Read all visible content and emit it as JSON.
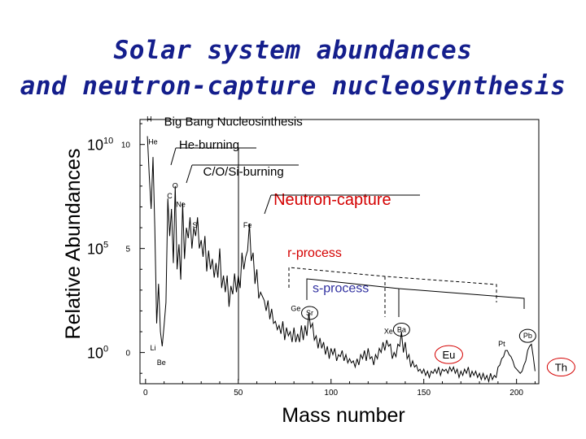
{
  "title_line1": "Solar system abundances",
  "title_line2": "and neutron-capture nucleosynthesis",
  "chart_data": {
    "type": "line",
    "xlabel": "Mass number",
    "ylabel": "Relative Abundances",
    "xlim": [
      -3,
      212
    ],
    "ylim": [
      -1.5,
      11.2
    ],
    "x_ticks": [
      0,
      50,
      100,
      150,
      200
    ],
    "y_ticks_inner": [
      0,
      5,
      10
    ],
    "y_ticks_outer": [
      {
        "value": 10,
        "base": "10",
        "exp": "10"
      },
      {
        "value": 5,
        "base": "10",
        "exp": "5"
      },
      {
        "value": 0,
        "base": "10",
        "exp": "0"
      }
    ],
    "series": [
      {
        "points": [
          [
            1,
            10.4
          ],
          [
            2,
            8.5
          ],
          [
            3,
            6.9
          ],
          [
            4,
            9.4
          ],
          [
            5,
            6.0
          ],
          [
            6,
            1.4
          ],
          [
            7,
            3.3
          ],
          [
            8,
            1.0
          ],
          [
            9,
            0.3
          ],
          [
            10,
            1.3
          ],
          [
            11,
            2.4
          ],
          [
            12,
            7.4
          ],
          [
            13,
            5.6
          ],
          [
            14,
            6.9
          ],
          [
            15,
            4.3
          ],
          [
            16,
            8.0
          ],
          [
            17,
            4.0
          ],
          [
            18,
            5.2
          ],
          [
            19,
            3.5
          ],
          [
            20,
            7.2
          ],
          [
            21,
            4.5
          ],
          [
            22,
            6.0
          ],
          [
            23,
            5.5
          ],
          [
            24,
            6.5
          ],
          [
            25,
            5.0
          ],
          [
            26,
            6.0
          ],
          [
            27,
            5.6
          ],
          [
            28,
            6.5
          ],
          [
            29,
            5.0
          ],
          [
            30,
            5.4
          ],
          [
            31,
            4.6
          ],
          [
            32,
            5.6
          ],
          [
            33,
            3.9
          ],
          [
            34,
            4.9
          ],
          [
            35,
            4.0
          ],
          [
            36,
            4.5
          ],
          [
            37,
            3.6
          ],
          [
            38,
            4.3
          ],
          [
            39,
            3.6
          ],
          [
            40,
            5.0
          ],
          [
            41,
            3.1
          ],
          [
            42,
            3.7
          ],
          [
            43,
            2.9
          ],
          [
            44,
            3.7
          ],
          [
            45,
            2.2
          ],
          [
            46,
            3.2
          ],
          [
            47,
            2.8
          ],
          [
            48,
            3.8
          ],
          [
            49,
            2.9
          ],
          [
            50,
            3.7
          ],
          [
            51,
            3.1
          ],
          [
            52,
            4.8
          ],
          [
            53,
            4.0
          ],
          [
            54,
            4.6
          ],
          [
            55,
            4.9
          ],
          [
            56,
            6.2
          ],
          [
            57,
            4.4
          ],
          [
            58,
            4.8
          ],
          [
            59,
            3.3
          ],
          [
            60,
            4.0
          ],
          [
            61,
            2.6
          ],
          [
            62,
            2.9
          ],
          [
            63,
            2.7
          ],
          [
            64,
            2.5
          ],
          [
            65,
            2.0
          ],
          [
            66,
            2.5
          ],
          [
            67,
            1.6
          ],
          [
            68,
            2.1
          ],
          [
            69,
            1.4
          ],
          [
            70,
            1.5
          ],
          [
            71,
            1.1
          ],
          [
            72,
            1.3
          ],
          [
            73,
            0.9
          ],
          [
            74,
            1.5
          ],
          [
            75,
            0.6
          ],
          [
            76,
            1.2
          ],
          [
            77,
            0.8
          ],
          [
            78,
            1.0
          ],
          [
            79,
            0.5
          ],
          [
            80,
            1.2
          ],
          [
            81,
            0.5
          ],
          [
            82,
            0.9
          ],
          [
            83,
            0.5
          ],
          [
            84,
            1.3
          ],
          [
            85,
            0.6
          ],
          [
            86,
            1.3
          ],
          [
            87,
            0.8
          ],
          [
            88,
            1.9
          ],
          [
            89,
            1.2
          ],
          [
            90,
            1.4
          ],
          [
            91,
            0.6
          ],
          [
            92,
            0.8
          ],
          [
            93,
            0.2
          ],
          [
            94,
            0.7
          ],
          [
            95,
            0.2
          ],
          [
            96,
            0.5
          ],
          [
            97,
            -0.1
          ],
          [
            98,
            0.3
          ],
          [
            99,
            -0.3
          ],
          [
            100,
            0.2
          ],
          [
            101,
            -0.1
          ],
          [
            102,
            0.2
          ],
          [
            103,
            -0.4
          ],
          [
            104,
            -0.1
          ],
          [
            105,
            -0.2
          ],
          [
            106,
            0.1
          ],
          [
            107,
            -0.4
          ],
          [
            108,
            -0.1
          ],
          [
            109,
            -0.5
          ],
          [
            110,
            -0.3
          ],
          [
            111,
            -0.5
          ],
          [
            112,
            -0.4
          ],
          [
            113,
            -0.7
          ],
          [
            114,
            -0.3
          ],
          [
            115,
            -0.6
          ],
          [
            116,
            -0.1
          ],
          [
            117,
            -0.3
          ],
          [
            118,
            0.1
          ],
          [
            119,
            -0.4
          ],
          [
            120,
            0.2
          ],
          [
            121,
            -0.3
          ],
          [
            122,
            -0.2
          ],
          [
            123,
            -0.6
          ],
          [
            124,
            -0.1
          ],
          [
            125,
            -0.3
          ],
          [
            126,
            0.2
          ],
          [
            127,
            0.0
          ],
          [
            128,
            0.5
          ],
          [
            129,
            0.1
          ],
          [
            130,
            0.6
          ],
          [
            131,
            0.3
          ],
          [
            132,
            0.4
          ],
          [
            133,
            -0.3
          ],
          [
            134,
            0.0
          ],
          [
            135,
            -0.2
          ],
          [
            136,
            0.4
          ],
          [
            137,
            0.3
          ],
          [
            138,
            1.0
          ],
          [
            139,
            0.0
          ],
          [
            140,
            0.5
          ],
          [
            141,
            -0.3
          ],
          [
            142,
            -0.1
          ],
          [
            143,
            -0.7
          ],
          [
            144,
            -0.4
          ],
          [
            145,
            -0.7
          ],
          [
            146,
            -0.6
          ],
          [
            147,
            -0.9
          ],
          [
            148,
            -0.8
          ],
          [
            149,
            -1.0
          ],
          [
            150,
            -0.8
          ],
          [
            151,
            -1.1
          ],
          [
            152,
            -0.9
          ],
          [
            153,
            -1.2
          ],
          [
            154,
            -0.9
          ],
          [
            155,
            -1.0
          ],
          [
            156,
            -0.8
          ],
          [
            157,
            -1.0
          ],
          [
            158,
            -0.7
          ],
          [
            159,
            -1.1
          ],
          [
            160,
            -0.8
          ],
          [
            161,
            -0.9
          ],
          [
            162,
            -0.8
          ],
          [
            163,
            -1.0
          ],
          [
            164,
            -0.7
          ],
          [
            165,
            -0.9
          ],
          [
            166,
            -0.7
          ],
          [
            167,
            -1.0
          ],
          [
            168,
            -0.8
          ],
          [
            169,
            -1.2
          ],
          [
            170,
            -0.9
          ],
          [
            171,
            -1.1
          ],
          [
            172,
            -0.8
          ],
          [
            173,
            -1.0
          ],
          [
            174,
            -0.7
          ],
          [
            175,
            -1.2
          ],
          [
            176,
            -0.9
          ],
          [
            177,
            -1.1
          ],
          [
            178,
            -0.9
          ],
          [
            179,
            -1.2
          ],
          [
            180,
            -1.0
          ],
          [
            181,
            -1.3
          ],
          [
            182,
            -1.0
          ],
          [
            183,
            -1.3
          ],
          [
            184,
            -1.1
          ],
          [
            185,
            -1.4
          ],
          [
            186,
            -1.0
          ],
          [
            187,
            -1.3
          ],
          [
            188,
            -1.1
          ],
          [
            189,
            -1.2
          ],
          [
            190,
            -0.7
          ],
          [
            191,
            -0.6
          ],
          [
            192,
            -0.3
          ],
          [
            193,
            -0.2
          ],
          [
            194,
            0.1
          ],
          [
            195,
            0.1
          ],
          [
            196,
            -0.1
          ],
          [
            197,
            -0.2
          ],
          [
            198,
            -0.4
          ],
          [
            199,
            -0.7
          ],
          [
            200,
            -0.8
          ],
          [
            201,
            -0.9
          ],
          [
            202,
            -1.0
          ],
          [
            203,
            -0.9
          ],
          [
            204,
            -0.6
          ],
          [
            205,
            -0.4
          ],
          [
            206,
            0.1
          ],
          [
            207,
            0.3
          ],
          [
            208,
            0.4
          ],
          [
            209,
            -0.2
          ],
          [
            210,
            -0.9
          ]
        ]
      }
    ],
    "point_labels": [
      {
        "text": "H",
        "x": 2,
        "y": 11.1
      },
      {
        "text": "He",
        "x": 4,
        "y": 10.0
      },
      {
        "text": "Li",
        "x": 4,
        "y": 0.1
      },
      {
        "text": "Be",
        "x": 8.5,
        "y": -0.6
      },
      {
        "text": "C",
        "x": 13,
        "y": 7.4
      },
      {
        "text": "O",
        "x": 16,
        "y": 7.9
      },
      {
        "text": "Ne",
        "x": 19,
        "y": 7.0
      },
      {
        "text": "Si",
        "x": 27,
        "y": 6.0
      },
      {
        "text": "Fe",
        "x": 55,
        "y": 6.0
      },
      {
        "text": "Ge",
        "x": 81,
        "y": 2.0
      },
      {
        "text": "Pt",
        "x": 192,
        "y": 0.3
      }
    ],
    "circled_labels": [
      {
        "text": "Sr",
        "x": 88.5,
        "y": 1.9,
        "color": "#000000",
        "size": "small"
      },
      {
        "text": "Ba",
        "x": 138,
        "y": 1.1,
        "color": "#000000",
        "size": "small"
      },
      {
        "text": "Pb",
        "x": 206,
        "y": 0.8,
        "color": "#000000",
        "size": "small"
      },
      {
        "text": "Eu",
        "x": 163.5,
        "y": -0.1,
        "color": "#d40000",
        "size": "large"
      },
      {
        "text": "Th",
        "x": 224,
        "y": -0.7,
        "color": "#d40000",
        "size": "large"
      }
    ],
    "extra_labels": [
      {
        "text": "Xe",
        "x": 131,
        "y": 0.9
      }
    ],
    "annotations": [
      {
        "text": "Big Bang Nucleosinthesis",
        "color": "#000000",
        "size": 15,
        "x": 10,
        "y": 10.9
      },
      {
        "text": "He-burning",
        "color": "#000000",
        "size": 15,
        "x": 18,
        "y": 9.8
      },
      {
        "text": "C/O/Si-burning",
        "color": "#000000",
        "size": 15,
        "x": 31,
        "y": 8.5
      },
      {
        "text": "Neutron-capture",
        "color": "#d40000",
        "size": 20,
        "x": 69,
        "y": 7.1
      },
      {
        "text": "r-process",
        "color": "#d40000",
        "size": 16,
        "x": 76.5,
        "y": 4.6
      },
      {
        "text": "s-process",
        "color": "#3030a0",
        "size": 16,
        "x": 90,
        "y": 2.9
      }
    ]
  }
}
